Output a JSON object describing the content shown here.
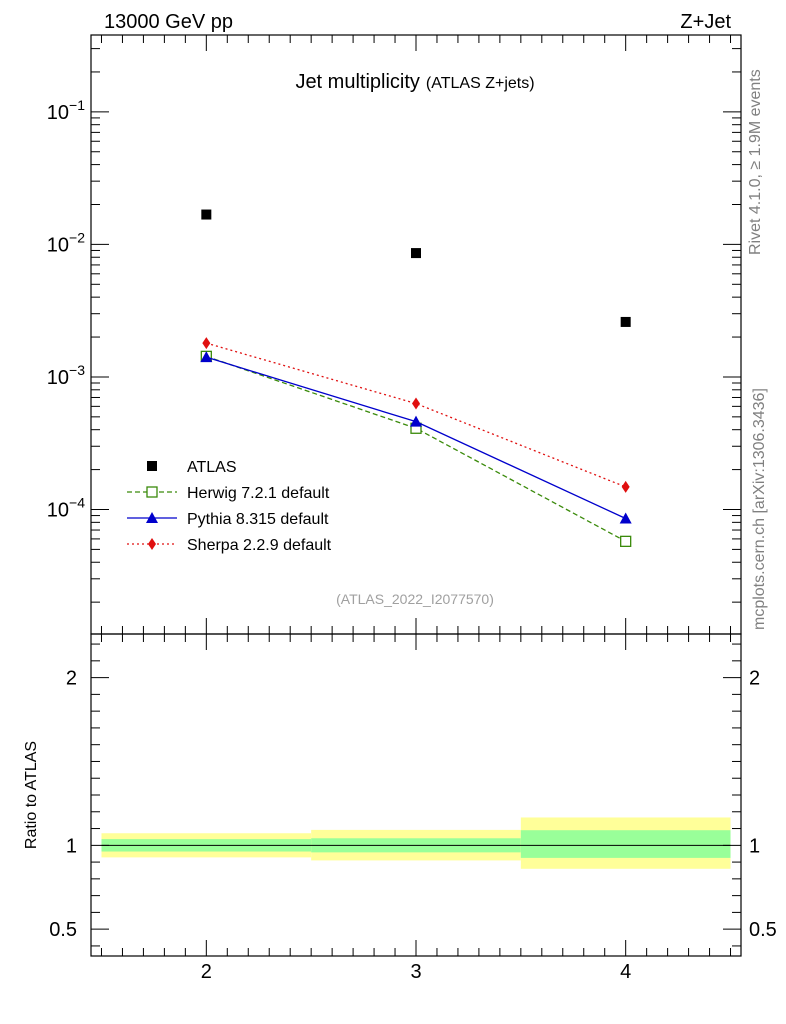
{
  "header": {
    "left": "13000 GeV pp",
    "right": "Z+Jet"
  },
  "side_labels": {
    "rivet": "Rivet 4.1.0, ≥ 1.9M events",
    "source": "mcplots.cern.ch [arXiv:1306.3436]"
  },
  "chart_data": [
    {
      "type": "scatter",
      "title": "Jet multiplicity",
      "subtitle": "(ATLAS Z+jets)",
      "analysis_id": "(ATLAS_2022_I2077570)",
      "xlabel": "",
      "ylabel": "",
      "yscale": "log",
      "xlim": [
        1.45,
        4.55
      ],
      "ylim": [
        1.15e-05,
        0.38
      ],
      "x_ticks": [
        2,
        3,
        4
      ],
      "y_ticks": [
        {
          "value": 0.1,
          "base": "10",
          "exp": "−1"
        },
        {
          "value": 0.01,
          "base": "10",
          "exp": "−2"
        },
        {
          "value": 0.001,
          "base": "10",
          "exp": "−3"
        },
        {
          "value": 0.0001,
          "base": "10",
          "exp": "−4"
        }
      ],
      "x": [
        2,
        3,
        4
      ],
      "series": [
        {
          "name": "ATLAS",
          "marker": "square",
          "color": "#000000",
          "line": "none",
          "values": [
            0.0168,
            0.0086,
            0.0026
          ]
        },
        {
          "name": "Herwig 7.2.1 default",
          "marker": "open-square",
          "color": "#3a8a0a",
          "line": "dashed",
          "values": [
            0.00143,
            0.00041,
            5.75e-05
          ]
        },
        {
          "name": "Pythia 8.315 default",
          "marker": "triangle",
          "color": "#0000cc",
          "line": "solid",
          "values": [
            0.00141,
            0.00046,
            8.55e-05
          ]
        },
        {
          "name": "Sherpa 2.2.9 default",
          "marker": "diamond",
          "color": "#e01010",
          "line": "dotted",
          "values": [
            0.0018,
            0.00063,
            0.000148
          ]
        }
      ],
      "legend_position": "left"
    },
    {
      "type": "area",
      "ylabel": "Ratio to ATLAS",
      "xlim": [
        1.45,
        4.55
      ],
      "ylim": [
        0.34,
        2.26
      ],
      "x_ticks": [
        2,
        3,
        4
      ],
      "y_ticks": [
        0.5,
        1,
        2
      ],
      "reference_line": 1,
      "bins": [
        {
          "low": 1.5,
          "high": 2.5,
          "inner": [
            0.963,
            1.037
          ],
          "outer": [
            0.928,
            1.072
          ]
        },
        {
          "low": 2.5,
          "high": 3.5,
          "inner": [
            0.958,
            1.042
          ],
          "outer": [
            0.91,
            1.092
          ]
        },
        {
          "low": 3.5,
          "high": 4.5,
          "inner": [
            0.925,
            1.09
          ],
          "outer": [
            0.86,
            1.166
          ]
        }
      ],
      "band_colors": {
        "inner": "#99ff99",
        "outer": "#ffff99"
      }
    }
  ]
}
